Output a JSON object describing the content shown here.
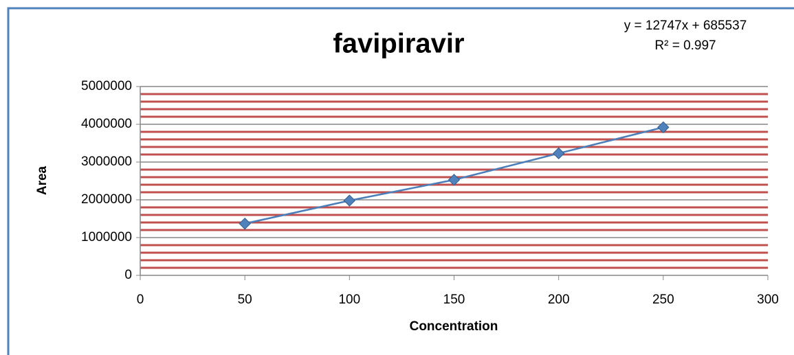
{
  "chart_data": {
    "type": "scatter",
    "title": "favipiravir",
    "annotations": [
      "y = 12747x + 685537",
      "R² = 0.997"
    ],
    "xlabel": "Concentration",
    "ylabel": "Area",
    "series": [
      {
        "name": "favipiravir",
        "color": "#4f81bd",
        "line_color": "#4a7ebb",
        "x": [
          50,
          100,
          150,
          200,
          250
        ],
        "values": [
          1370000,
          1980000,
          2530000,
          3230000,
          3920000
        ]
      }
    ],
    "xlim": [
      0,
      300
    ],
    "xticks": [
      0,
      50,
      100,
      150,
      200,
      250,
      300
    ],
    "ylim": [
      0,
      5000000
    ],
    "yticks": [
      0,
      1000000,
      2000000,
      3000000,
      4000000,
      5000000
    ],
    "grid": true,
    "grid_color": "#868686",
    "minor_grid_step": 200000,
    "minor_grid_color": "#c0504d"
  }
}
